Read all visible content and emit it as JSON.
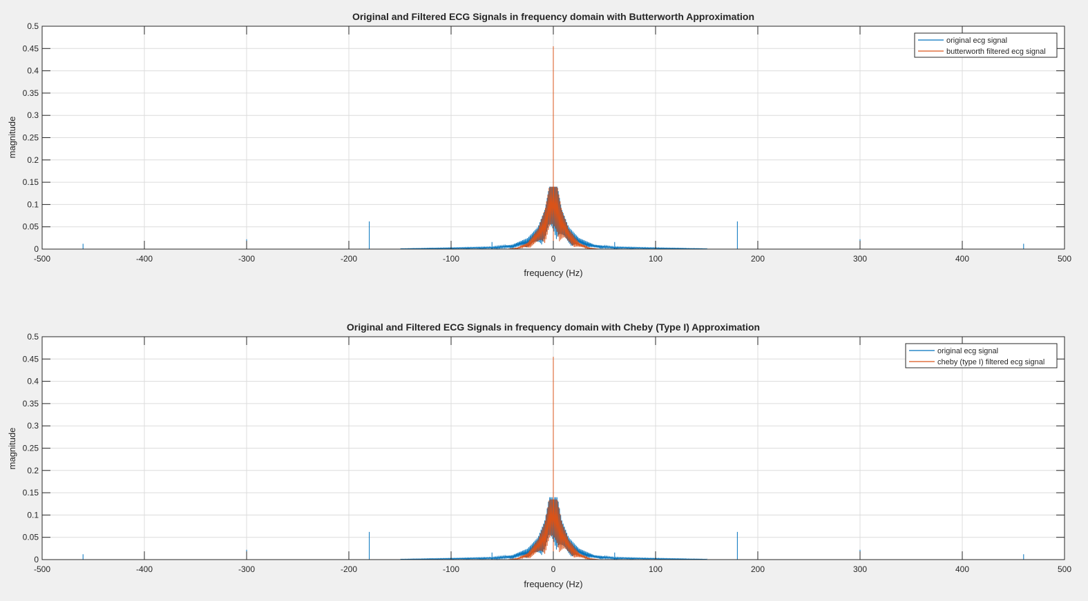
{
  "figure": {
    "background": "#f0f0f0",
    "colors": {
      "original": "#0072bd",
      "filtered": "#d95319"
    }
  },
  "chart_data": [
    {
      "type": "line",
      "title": "Original and Filtered ECG Signals in frequency domain with Butterworth Approximation",
      "xlabel": "frequency (Hz)",
      "ylabel": "magnitude",
      "xlim": [
        -500,
        500
      ],
      "ylim": [
        0,
        0.5
      ],
      "xticks": [
        -500,
        -400,
        -300,
        -200,
        -100,
        0,
        100,
        200,
        300,
        400,
        500
      ],
      "yticks": [
        0,
        0.05,
        0.1,
        0.15,
        0.2,
        0.25,
        0.3,
        0.35,
        0.4,
        0.45,
        0.5
      ],
      "grid": true,
      "legend_position": "top-right",
      "series": [
        {
          "name": "original ecg signal",
          "color": "#0072bd",
          "peaks": [
            [
              -460,
              0.012
            ],
            [
              -300,
              0.022
            ],
            [
              -180,
              0.062
            ],
            [
              -60,
              0.016
            ],
            [
              0,
              0.455
            ],
            [
              60,
              0.016
            ],
            [
              180,
              0.062
            ],
            [
              300,
              0.022
            ],
            [
              460,
              0.012
            ]
          ],
          "envelope": [
            [
              -150,
              0.001
            ],
            [
              -100,
              0.003
            ],
            [
              -60,
              0.005
            ],
            [
              -40,
              0.01
            ],
            [
              -25,
              0.025
            ],
            [
              -15,
              0.05
            ],
            [
              -8,
              0.09
            ],
            [
              -4,
              0.14
            ],
            [
              0,
              0.14
            ],
            [
              4,
              0.14
            ],
            [
              8,
              0.09
            ],
            [
              15,
              0.05
            ],
            [
              25,
              0.025
            ],
            [
              40,
              0.01
            ],
            [
              60,
              0.005
            ],
            [
              100,
              0.003
            ],
            [
              150,
              0.001
            ]
          ]
        },
        {
          "name": "butterworth filtered ecg signal",
          "color": "#d95319",
          "peaks": [
            [
              0,
              0.455
            ]
          ],
          "envelope": [
            [
              -45,
              0.0
            ],
            [
              -35,
              0.003
            ],
            [
              -25,
              0.015
            ],
            [
              -15,
              0.045
            ],
            [
              -8,
              0.09
            ],
            [
              -4,
              0.14
            ],
            [
              0,
              0.14
            ],
            [
              4,
              0.14
            ],
            [
              8,
              0.09
            ],
            [
              15,
              0.045
            ],
            [
              25,
              0.015
            ],
            [
              35,
              0.003
            ],
            [
              45,
              0.0
            ]
          ]
        }
      ]
    },
    {
      "type": "line",
      "title": "Original and Filtered ECG Signals in frequency domain with Cheby (Type I) Approximation",
      "xlabel": "frequency (Hz)",
      "ylabel": "magnitude",
      "xlim": [
        -500,
        500
      ],
      "ylim": [
        0,
        0.5
      ],
      "xticks": [
        -500,
        -400,
        -300,
        -200,
        -100,
        0,
        100,
        200,
        300,
        400,
        500
      ],
      "yticks": [
        0,
        0.05,
        0.1,
        0.15,
        0.2,
        0.25,
        0.3,
        0.35,
        0.4,
        0.45,
        0.5
      ],
      "grid": true,
      "legend_position": "top-right",
      "series": [
        {
          "name": "original ecg signal",
          "color": "#0072bd",
          "peaks": [
            [
              -460,
              0.012
            ],
            [
              -300,
              0.022
            ],
            [
              -180,
              0.062
            ],
            [
              -60,
              0.016
            ],
            [
              0,
              0.455
            ],
            [
              60,
              0.016
            ],
            [
              180,
              0.062
            ],
            [
              300,
              0.022
            ],
            [
              460,
              0.012
            ]
          ],
          "envelope": [
            [
              -150,
              0.001
            ],
            [
              -100,
              0.003
            ],
            [
              -60,
              0.005
            ],
            [
              -40,
              0.01
            ],
            [
              -25,
              0.025
            ],
            [
              -15,
              0.05
            ],
            [
              -8,
              0.09
            ],
            [
              -4,
              0.14
            ],
            [
              0,
              0.14
            ],
            [
              4,
              0.14
            ],
            [
              8,
              0.09
            ],
            [
              15,
              0.05
            ],
            [
              25,
              0.025
            ],
            [
              40,
              0.01
            ],
            [
              60,
              0.005
            ],
            [
              100,
              0.003
            ],
            [
              150,
              0.001
            ]
          ]
        },
        {
          "name": "cheby (type I) filtered ecg signal",
          "color": "#d95319",
          "peaks": [
            [
              0,
              0.455
            ]
          ],
          "envelope": [
            [
              -45,
              0.0
            ],
            [
              -35,
              0.003
            ],
            [
              -25,
              0.015
            ],
            [
              -15,
              0.045
            ],
            [
              -8,
              0.085
            ],
            [
              -4,
              0.135
            ],
            [
              0,
              0.135
            ],
            [
              4,
              0.135
            ],
            [
              8,
              0.085
            ],
            [
              15,
              0.045
            ],
            [
              25,
              0.015
            ],
            [
              35,
              0.003
            ],
            [
              45,
              0.0
            ]
          ]
        }
      ]
    }
  ]
}
